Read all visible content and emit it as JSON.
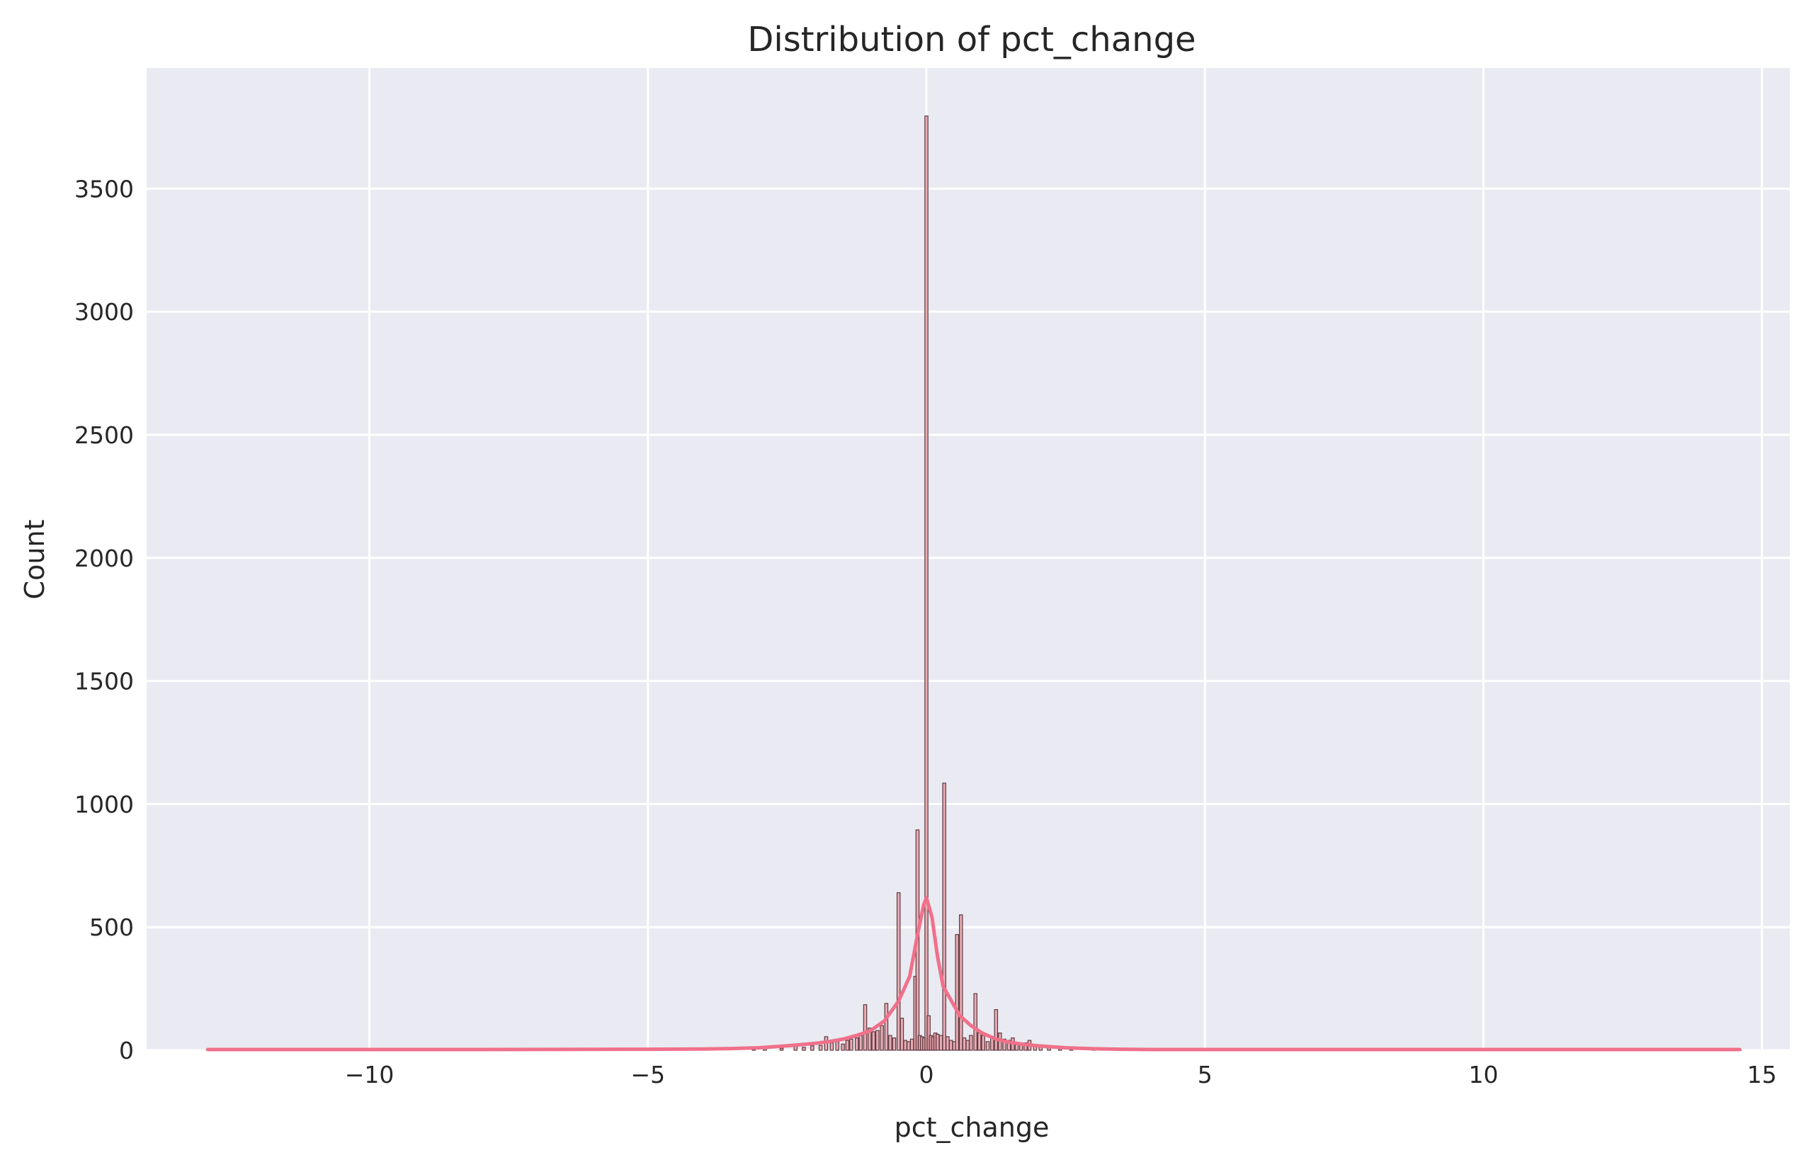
{
  "chart_data": {
    "type": "bar",
    "title": "Distribution of pct_change",
    "xlabel": "pct_change",
    "ylabel": "Count",
    "xlim": [
      -14.0,
      15.5
    ],
    "ylim": [
      0,
      3990
    ],
    "x_ticks": [
      -10,
      -5,
      0,
      5,
      10,
      15
    ],
    "x_tick_labels": [
      "−10",
      "−5",
      "0",
      "5",
      "10",
      "15"
    ],
    "y_ticks": [
      0,
      500,
      1000,
      1500,
      2000,
      2500,
      3000,
      3500
    ],
    "y_tick_labels": [
      "0",
      "500",
      "1000",
      "1500",
      "2000",
      "2500",
      "3000",
      "3500"
    ],
    "grid": true,
    "colors": {
      "plot_background": "#eaeaf2",
      "grid": "#ffffff",
      "bar_fill": "#e8a0a8",
      "bar_edge": "#5c3a40",
      "kde": "#f0708a",
      "text": "#262626"
    },
    "histogram": {
      "bins": [
        {
          "x": -12.9,
          "count": 2
        },
        {
          "x": -3.1,
          "count": 6
        },
        {
          "x": -2.9,
          "count": 10
        },
        {
          "x": -2.6,
          "count": 8
        },
        {
          "x": -2.35,
          "count": 25
        },
        {
          "x": -2.2,
          "count": 12
        },
        {
          "x": -2.05,
          "count": 18
        },
        {
          "x": -1.9,
          "count": 20
        },
        {
          "x": -1.8,
          "count": 55
        },
        {
          "x": -1.7,
          "count": 30
        },
        {
          "x": -1.6,
          "count": 35
        },
        {
          "x": -1.5,
          "count": 25
        },
        {
          "x": -1.42,
          "count": 40
        },
        {
          "x": -1.35,
          "count": 45
        },
        {
          "x": -1.25,
          "count": 50
        },
        {
          "x": -1.18,
          "count": 60
        },
        {
          "x": -1.1,
          "count": 185
        },
        {
          "x": -1.02,
          "count": 90
        },
        {
          "x": -0.95,
          "count": 75
        },
        {
          "x": -0.88,
          "count": 80
        },
        {
          "x": -0.8,
          "count": 100
        },
        {
          "x": -0.72,
          "count": 190
        },
        {
          "x": -0.65,
          "count": 60
        },
        {
          "x": -0.58,
          "count": 50
        },
        {
          "x": -0.5,
          "count": 640
        },
        {
          "x": -0.44,
          "count": 130
        },
        {
          "x": -0.38,
          "count": 40
        },
        {
          "x": -0.32,
          "count": 35
        },
        {
          "x": -0.26,
          "count": 45
        },
        {
          "x": -0.2,
          "count": 300
        },
        {
          "x": -0.16,
          "count": 895
        },
        {
          "x": -0.12,
          "count": 60
        },
        {
          "x": -0.08,
          "count": 55
        },
        {
          "x": -0.04,
          "count": 50
        },
        {
          "x": 0.0,
          "count": 3795
        },
        {
          "x": 0.04,
          "count": 140
        },
        {
          "x": 0.08,
          "count": 60
        },
        {
          "x": 0.12,
          "count": 55
        },
        {
          "x": 0.16,
          "count": 70
        },
        {
          "x": 0.2,
          "count": 65
        },
        {
          "x": 0.26,
          "count": 60
        },
        {
          "x": 0.32,
          "count": 1085
        },
        {
          "x": 0.38,
          "count": 55
        },
        {
          "x": 0.44,
          "count": 40
        },
        {
          "x": 0.5,
          "count": 35
        },
        {
          "x": 0.55,
          "count": 470
        },
        {
          "x": 0.62,
          "count": 550
        },
        {
          "x": 0.68,
          "count": 50
        },
        {
          "x": 0.74,
          "count": 40
        },
        {
          "x": 0.8,
          "count": 60
        },
        {
          "x": 0.88,
          "count": 230
        },
        {
          "x": 0.95,
          "count": 70
        },
        {
          "x": 1.02,
          "count": 60
        },
        {
          "x": 1.1,
          "count": 35
        },
        {
          "x": 1.18,
          "count": 50
        },
        {
          "x": 1.25,
          "count": 165
        },
        {
          "x": 1.32,
          "count": 70
        },
        {
          "x": 1.4,
          "count": 45
        },
        {
          "x": 1.48,
          "count": 40
        },
        {
          "x": 1.55,
          "count": 50
        },
        {
          "x": 1.62,
          "count": 30
        },
        {
          "x": 1.7,
          "count": 25
        },
        {
          "x": 1.78,
          "count": 30
        },
        {
          "x": 1.85,
          "count": 40
        },
        {
          "x": 1.95,
          "count": 20
        },
        {
          "x": 2.05,
          "count": 15
        },
        {
          "x": 2.2,
          "count": 10
        },
        {
          "x": 2.4,
          "count": 6
        },
        {
          "x": 2.6,
          "count": 5
        },
        {
          "x": 3.0,
          "count": 3
        },
        {
          "x": 14.6,
          "count": 2
        }
      ]
    },
    "kde": {
      "x": [
        -12.9,
        -8.0,
        -5.0,
        -4.0,
        -3.5,
        -3.0,
        -2.5,
        -2.0,
        -1.75,
        -1.5,
        -1.25,
        -1.0,
        -0.75,
        -0.5,
        -0.3,
        -0.15,
        -0.05,
        0.0,
        0.1,
        0.2,
        0.3,
        0.45,
        0.6,
        0.8,
        1.0,
        1.25,
        1.5,
        1.75,
        2.0,
        2.5,
        3.0,
        3.5,
        4.0,
        5.0,
        8.0,
        14.6
      ],
      "y": [
        3,
        3,
        4,
        5,
        7,
        10,
        18,
        28,
        35,
        45,
        60,
        80,
        120,
        200,
        300,
        480,
        590,
        620,
        540,
        380,
        260,
        200,
        140,
        100,
        70,
        45,
        32,
        24,
        18,
        10,
        6,
        4,
        3,
        3,
        3,
        3
      ]
    }
  }
}
